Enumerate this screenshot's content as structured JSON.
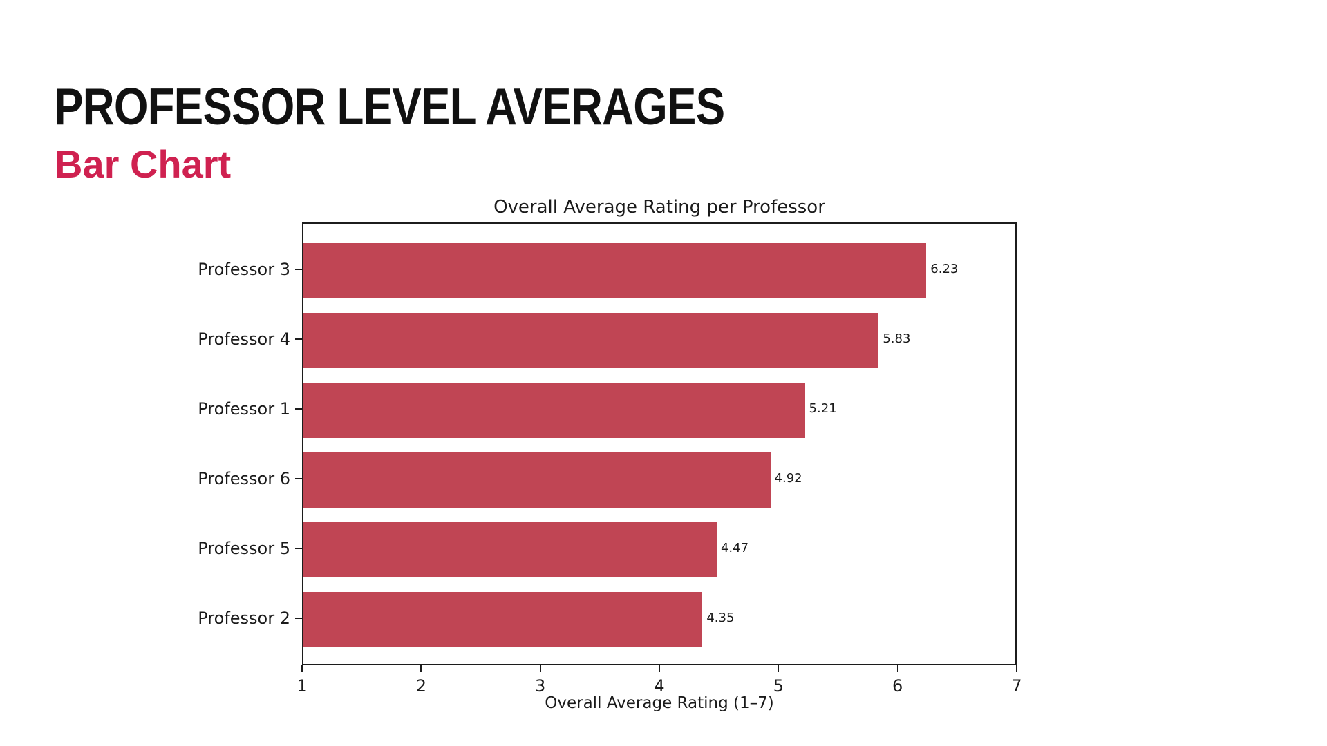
{
  "header": {
    "title": "PROFESSOR LEVEL AVERAGES",
    "subtitle": "Bar Chart"
  },
  "theme": {
    "background": "#ffffff",
    "title_color": "#111111",
    "accent_color": "#CF2150",
    "bar_color": "#C04554",
    "axis_color": "#1c1c1c",
    "text_color": "#1a1a1a"
  },
  "chart_data": {
    "type": "bar",
    "orientation": "horizontal",
    "title": "Overall Average Rating per Professor",
    "xlabel": "Overall Average Rating (1–7)",
    "categories": [
      "Professor 3",
      "Professor 4",
      "Professor 1",
      "Professor 6",
      "Professor 5",
      "Professor 2"
    ],
    "values": [
      6.23,
      5.83,
      5.21,
      4.92,
      4.47,
      4.35
    ],
    "value_labels": [
      "6.23",
      "5.83",
      "5.21",
      "4.92",
      "4.47",
      "4.35"
    ],
    "xlim": [
      1,
      7
    ],
    "xticks": [
      1,
      2,
      3,
      4,
      5,
      6,
      7
    ],
    "grid": false,
    "legend": null
  }
}
